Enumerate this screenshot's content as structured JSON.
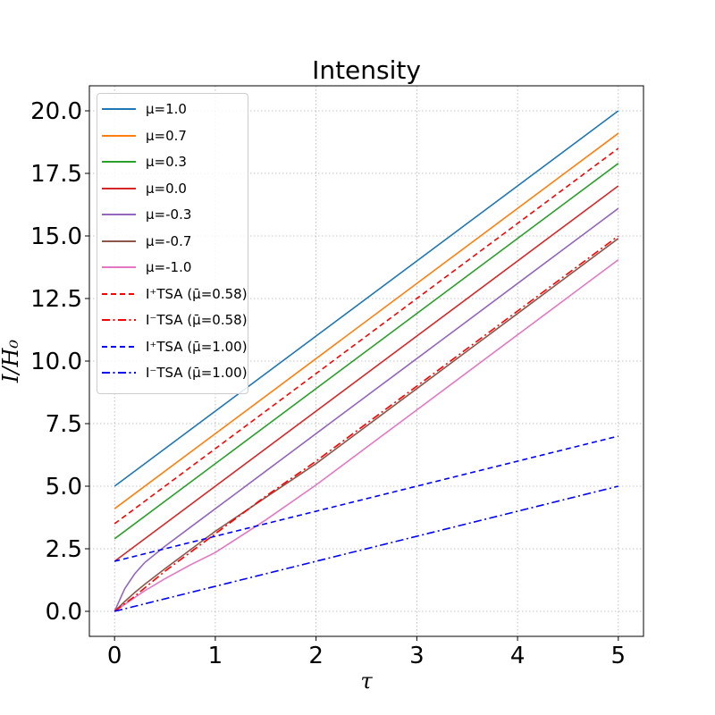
{
  "chart_data": {
    "type": "line",
    "title": "Intensity",
    "xlabel": "τ",
    "ylabel": "I/H₀",
    "xlim": [
      -0.25,
      5.25
    ],
    "ylim": [
      -1.0,
      21.0
    ],
    "xticks": [
      "0",
      "1",
      "2",
      "3",
      "4",
      "5"
    ],
    "yticks": [
      "0.0",
      "2.5",
      "5.0",
      "7.5",
      "10.0",
      "12.5",
      "15.0",
      "17.5",
      "20.0"
    ],
    "grid": true,
    "legend_position": "upper-left",
    "series": [
      {
        "name": "μ=1.0",
        "color": "#1f77b4",
        "style": "solid",
        "x": [
          0,
          5
        ],
        "y": [
          5.0,
          20.0
        ]
      },
      {
        "name": "μ=0.7",
        "color": "#ff7f0e",
        "style": "solid",
        "x": [
          0,
          5
        ],
        "y": [
          4.1,
          19.1
        ]
      },
      {
        "name": "μ=0.3",
        "color": "#2ca02c",
        "style": "solid",
        "x": [
          0,
          5
        ],
        "y": [
          2.9,
          17.9
        ]
      },
      {
        "name": "μ=0.0",
        "color": "#d62728",
        "style": "solid",
        "x": [
          0,
          5
        ],
        "y": [
          2.0,
          17.0
        ]
      },
      {
        "name": "μ=-0.3",
        "color": "#9467bd",
        "style": "solid",
        "x": [
          0,
          0.1,
          0.2,
          0.3,
          0.5,
          0.75,
          1.0,
          1.5,
          2.0,
          3.0,
          4.0,
          5.0
        ],
        "y": [
          0.0,
          0.9,
          1.5,
          1.95,
          2.6,
          3.35,
          4.1,
          5.6,
          7.1,
          10.1,
          13.1,
          16.1
        ]
      },
      {
        "name": "μ=-0.7",
        "color": "#8c564b",
        "style": "solid",
        "x": [
          0,
          0.1,
          0.2,
          0.3,
          0.5,
          0.75,
          1.0,
          1.5,
          2.0,
          3.0,
          4.0,
          5.0
        ],
        "y": [
          0.0,
          0.39,
          0.75,
          1.08,
          1.7,
          2.45,
          3.2,
          4.55,
          5.9,
          8.9,
          11.9,
          14.9
        ]
      },
      {
        "name": "μ=-1.0",
        "color": "#e377c2",
        "style": "solid",
        "x": [
          0,
          0.1,
          0.2,
          0.3,
          0.5,
          0.75,
          1.0,
          1.5,
          2.0,
          3.0,
          4.0,
          5.0
        ],
        "y": [
          0.0,
          0.28,
          0.55,
          0.82,
          1.3,
          1.85,
          2.35,
          3.65,
          5.05,
          8.05,
          11.05,
          14.05
        ]
      },
      {
        "name": "I⁺TSA (μ̄=0.58)",
        "color": "#ff0000",
        "style": "dashed",
        "x": [
          0,
          5
        ],
        "y": [
          3.5,
          18.5
        ]
      },
      {
        "name": "I⁻TSA (μ̄=0.58)",
        "color": "#ff0000",
        "style": "dashdot",
        "x": [
          0,
          0.2,
          0.5,
          1.0,
          1.5,
          2.0,
          3.0,
          4.0,
          5.0
        ],
        "y": [
          0.0,
          0.6,
          1.6,
          3.1,
          4.6,
          6.0,
          9.0,
          12.0,
          15.0
        ]
      },
      {
        "name": "I⁺TSA (μ̄=1.00)",
        "color": "#0000ff",
        "style": "dashed",
        "x": [
          0,
          5
        ],
        "y": [
          2.0,
          7.0
        ]
      },
      {
        "name": "I⁻TSA (μ̄=1.00)",
        "color": "#0000ff",
        "style": "dashdot",
        "x": [
          0,
          5
        ],
        "y": [
          0.0,
          5.0
        ]
      }
    ]
  }
}
